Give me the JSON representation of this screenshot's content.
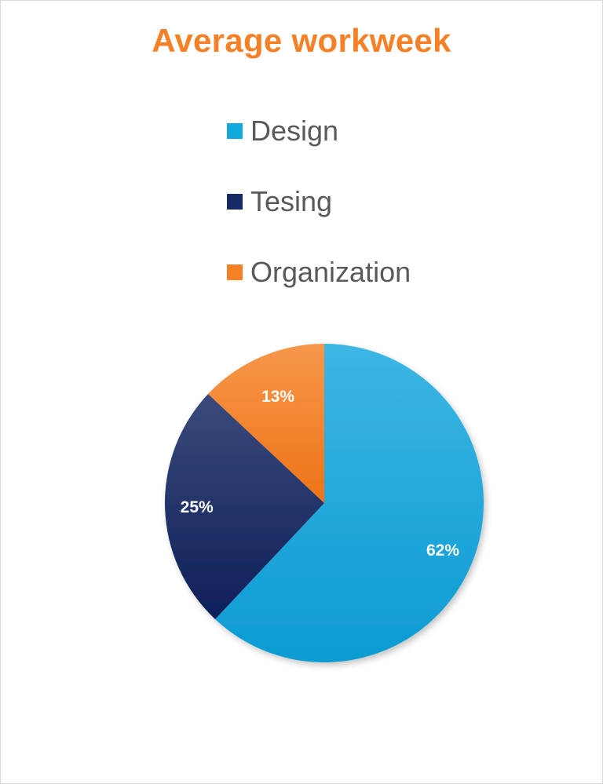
{
  "chart_data": {
    "type": "pie",
    "title": "Average workweek",
    "legend_position": "top",
    "slices": [
      {
        "label": "Design",
        "value": 62,
        "display": "62%",
        "color": "#12a9dd"
      },
      {
        "label": "Tesing",
        "value": 25,
        "display": "25%",
        "color": "#172a66"
      },
      {
        "label": "Organization",
        "value": 13,
        "display": "13%",
        "color": "#f58025"
      }
    ]
  }
}
